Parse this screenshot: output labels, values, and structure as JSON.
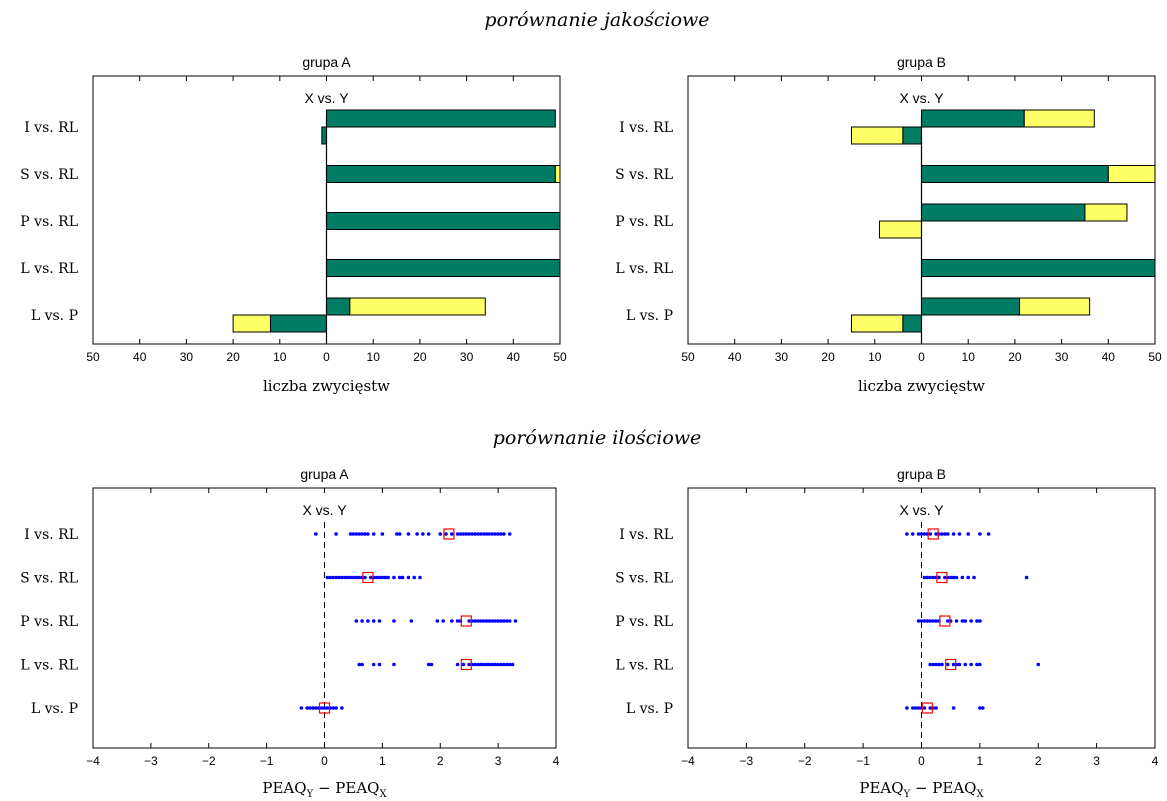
{
  "sections": {
    "qualitative": "porównanie jakościowe",
    "quantitative": "porównanie ilościowe"
  },
  "colors": {
    "win_dark": "#007c64",
    "win_light": "#ffff66",
    "points": "#0000ff",
    "mean_marker": "#ff0000"
  },
  "chart_data": [
    {
      "type": "bar",
      "title": "grupa A",
      "annotation": "X vs. Y",
      "xlabel": "liczba zwycięstw",
      "xlim": [
        -50,
        50
      ],
      "xtick_labels": [
        "50",
        "40",
        "30",
        "20",
        "10",
        "0",
        "10",
        "20",
        "30",
        "40",
        "50"
      ],
      "categories": [
        "I vs. RL",
        "S vs. RL",
        "P vs. RL",
        "L vs. RL",
        "L vs. P"
      ],
      "bars": [
        {
          "category": "I vs. RL",
          "right_dark": 49,
          "right_light": 0,
          "left_dark": 1,
          "left_light": 0
        },
        {
          "category": "S vs. RL",
          "right_dark": 49,
          "right_light": 1,
          "left_dark": 0,
          "left_light": 0
        },
        {
          "category": "P vs. RL",
          "right_dark": 50,
          "right_light": 0,
          "left_dark": 0,
          "left_light": 0
        },
        {
          "category": "L vs. RL",
          "right_dark": 50,
          "right_light": 0,
          "left_dark": 0,
          "left_light": 0
        },
        {
          "category": "L vs. P",
          "right_dark": 5,
          "right_light": 29,
          "left_dark": 12,
          "left_light": 8
        }
      ]
    },
    {
      "type": "bar",
      "title": "grupa B",
      "annotation": "X vs. Y",
      "xlabel": "liczba zwycięstw",
      "xlim": [
        -50,
        50
      ],
      "xtick_labels": [
        "50",
        "40",
        "30",
        "20",
        "10",
        "0",
        "10",
        "20",
        "30",
        "40",
        "50"
      ],
      "categories": [
        "I vs. RL",
        "S vs. RL",
        "P vs. RL",
        "L vs. RL",
        "L vs. P"
      ],
      "bars": [
        {
          "category": "I vs. RL",
          "right_dark": 22,
          "right_light": 15,
          "left_dark": 4,
          "left_light": 11
        },
        {
          "category": "S vs. RL",
          "right_dark": 40,
          "right_light": 10,
          "left_dark": 0,
          "left_light": 0
        },
        {
          "category": "P vs. RL",
          "right_dark": 35,
          "right_light": 9,
          "left_dark": 0,
          "left_light": 9
        },
        {
          "category": "L vs. RL",
          "right_dark": 50,
          "right_light": 0,
          "left_dark": 0,
          "left_light": 0
        },
        {
          "category": "L vs. P",
          "right_dark": 21,
          "right_light": 15,
          "left_dark": 4,
          "left_light": 11
        }
      ]
    },
    {
      "type": "scatter",
      "title": "grupa A",
      "annotation": "X vs. Y",
      "xlabel": "PEAQ",
      "xlabel_sub1": "Y",
      "xlabel_mid": " − PEAQ",
      "xlabel_sub2": "X",
      "xlim": [
        -4,
        4
      ],
      "xtick_labels": [
        "−4",
        "−3",
        "−2",
        "−1",
        "0",
        "1",
        "2",
        "3",
        "4"
      ],
      "categories": [
        "I vs. RL",
        "S vs. RL",
        "P vs. RL",
        "L vs. RL",
        "L vs. P"
      ],
      "series": [
        {
          "category": "I vs. RL",
          "mean": 2.15,
          "values": [
            -0.15,
            0.2,
            0.45,
            0.5,
            0.55,
            0.6,
            0.65,
            0.7,
            0.75,
            0.85,
            1.0,
            1.25,
            1.3,
            1.45,
            1.6,
            1.7,
            1.8,
            2.0,
            2.1,
            2.2,
            2.3,
            2.35,
            2.4,
            2.45,
            2.5,
            2.55,
            2.6,
            2.65,
            2.7,
            2.75,
            2.8,
            2.85,
            2.9,
            2.95,
            3.0,
            3.05,
            3.1,
            3.2
          ]
        },
        {
          "category": "S vs. RL",
          "mean": 0.75,
          "values": [
            0.05,
            0.1,
            0.15,
            0.2,
            0.25,
            0.3,
            0.35,
            0.4,
            0.45,
            0.5,
            0.55,
            0.6,
            0.65,
            0.7,
            0.8,
            0.85,
            0.9,
            0.95,
            1.0,
            1.05,
            1.1,
            1.2,
            1.3,
            1.35,
            1.45,
            1.55,
            1.65
          ]
        },
        {
          "category": "P vs. RL",
          "mean": 2.45,
          "values": [
            0.55,
            0.65,
            0.75,
            0.85,
            0.95,
            1.2,
            1.5,
            1.95,
            2.05,
            2.2,
            2.3,
            2.35,
            2.5,
            2.55,
            2.6,
            2.65,
            2.7,
            2.75,
            2.8,
            2.85,
            2.9,
            2.95,
            3.0,
            3.05,
            3.1,
            3.15,
            3.2,
            3.3
          ]
        },
        {
          "category": "L vs. RL",
          "mean": 2.45,
          "values": [
            0.6,
            0.65,
            0.85,
            0.95,
            1.2,
            1.8,
            1.85,
            2.3,
            2.4,
            2.5,
            2.55,
            2.6,
            2.65,
            2.7,
            2.75,
            2.8,
            2.85,
            2.9,
            2.95,
            3.0,
            3.05,
            3.1,
            3.15,
            3.2,
            3.25
          ]
        },
        {
          "category": "L vs. P",
          "mean": 0.0,
          "values": [
            -0.4,
            -0.3,
            -0.25,
            -0.2,
            -0.15,
            -0.1,
            -0.05,
            0.0,
            0.05,
            0.1,
            0.15,
            0.2,
            0.3
          ]
        }
      ]
    },
    {
      "type": "scatter",
      "title": "grupa B",
      "annotation": "X vs. Y",
      "xlabel": "PEAQ",
      "xlabel_sub1": "Y",
      "xlabel_mid": " − PEAQ",
      "xlabel_sub2": "X",
      "xlim": [
        -4,
        4
      ],
      "xtick_labels": [
        "−4",
        "−3",
        "−2",
        "−1",
        "0",
        "1",
        "2",
        "3",
        "4"
      ],
      "categories": [
        "I vs. RL",
        "S vs. RL",
        "P vs. RL",
        "L vs. RL",
        "L vs. P"
      ],
      "series": [
        {
          "category": "I vs. RL",
          "mean": 0.2,
          "values": [
            -0.25,
            -0.15,
            -0.05,
            0.0,
            0.05,
            0.1,
            0.15,
            0.25,
            0.3,
            0.35,
            0.4,
            0.45,
            0.55,
            0.65,
            0.8,
            1.0,
            1.15
          ]
        },
        {
          "category": "S vs. RL",
          "mean": 0.35,
          "values": [
            0.05,
            0.1,
            0.15,
            0.2,
            0.25,
            0.3,
            0.4,
            0.45,
            0.5,
            0.55,
            0.6,
            0.7,
            0.8,
            0.9,
            1.8
          ]
        },
        {
          "category": "P vs. RL",
          "mean": 0.4,
          "values": [
            -0.05,
            0.0,
            0.05,
            0.1,
            0.15,
            0.2,
            0.25,
            0.3,
            0.45,
            0.5,
            0.6,
            0.7,
            0.75,
            0.85,
            0.95,
            1.0
          ]
        },
        {
          "category": "L vs. RL",
          "mean": 0.5,
          "values": [
            0.15,
            0.2,
            0.25,
            0.3,
            0.35,
            0.45,
            0.55,
            0.6,
            0.65,
            0.75,
            0.85,
            0.95,
            1.0,
            2.0
          ]
        },
        {
          "category": "L vs. P",
          "mean": 0.1,
          "values": [
            -0.25,
            -0.15,
            -0.1,
            -0.05,
            0.0,
            0.05,
            0.15,
            0.2,
            0.25,
            0.55,
            1.0,
            1.05
          ]
        }
      ]
    }
  ]
}
